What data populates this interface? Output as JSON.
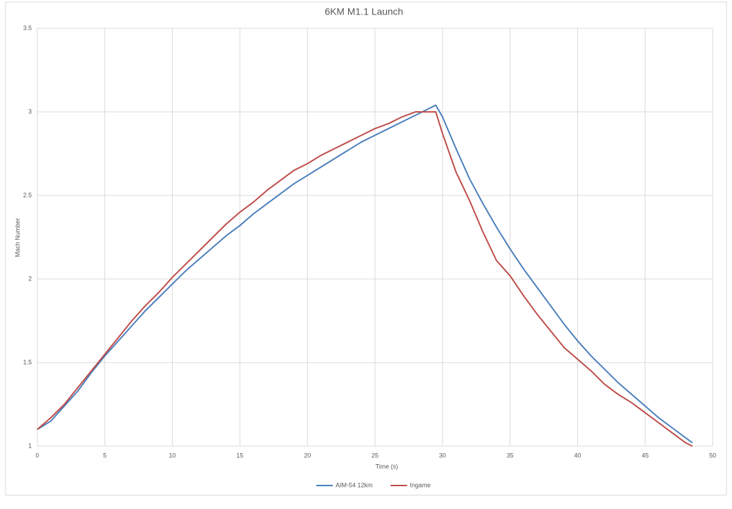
{
  "chart_data": {
    "type": "line",
    "title": "6KM M1.1 Launch",
    "xlabel": "Time (s)",
    "ylabel": "Mach Number",
    "x": [
      0,
      1,
      2,
      3,
      4,
      5,
      6,
      7,
      8,
      9,
      10,
      11,
      12,
      13,
      14,
      15,
      16,
      17,
      18,
      19,
      20,
      21,
      22,
      23,
      24,
      25,
      26,
      27,
      28,
      29,
      29.5,
      30,
      31,
      32,
      33,
      34,
      35,
      36,
      37,
      38,
      39,
      40,
      41,
      42,
      43,
      44,
      45,
      46,
      47,
      48,
      48.5
    ],
    "series": [
      {
        "name": "AIM-54 12km",
        "color": "#4a7ebb",
        "values": [
          1.1,
          1.15,
          1.24,
          1.33,
          1.44,
          1.54,
          1.63,
          1.72,
          1.81,
          1.89,
          1.97,
          2.05,
          2.12,
          2.19,
          2.26,
          2.32,
          2.39,
          2.45,
          2.51,
          2.57,
          2.62,
          2.67,
          2.72,
          2.77,
          2.82,
          2.86,
          2.9,
          2.94,
          2.98,
          3.02,
          3.04,
          2.97,
          2.78,
          2.6,
          2.45,
          2.31,
          2.18,
          2.06,
          1.95,
          1.84,
          1.73,
          1.63,
          1.54,
          1.46,
          1.38,
          1.31,
          1.24,
          1.17,
          1.11,
          1.05,
          1.02
        ]
      },
      {
        "name": "Ingame",
        "color": "#be4b48",
        "values": [
          1.1,
          1.17,
          1.25,
          1.35,
          1.45,
          1.55,
          1.65,
          1.75,
          1.84,
          1.92,
          2.01,
          2.09,
          2.17,
          2.25,
          2.33,
          2.4,
          2.46,
          2.53,
          2.59,
          2.65,
          2.69,
          2.74,
          2.78,
          2.82,
          2.86,
          2.9,
          2.93,
          2.97,
          3.0,
          3.0,
          3.0,
          2.87,
          2.64,
          2.47,
          2.28,
          2.11,
          2.02,
          1.9,
          1.79,
          1.69,
          1.59,
          1.52,
          1.45,
          1.37,
          1.31,
          1.26,
          1.2,
          1.14,
          1.08,
          1.02,
          1.0
        ]
      }
    ],
    "xlim": [
      0,
      50
    ],
    "xticks": [
      0,
      5,
      10,
      15,
      20,
      25,
      30,
      35,
      40,
      45,
      50
    ],
    "ylim": [
      1,
      3.5
    ],
    "yticks": [
      1,
      1.5,
      2,
      2.5,
      3,
      3.5
    ],
    "grid": true,
    "legend": "bottom"
  }
}
